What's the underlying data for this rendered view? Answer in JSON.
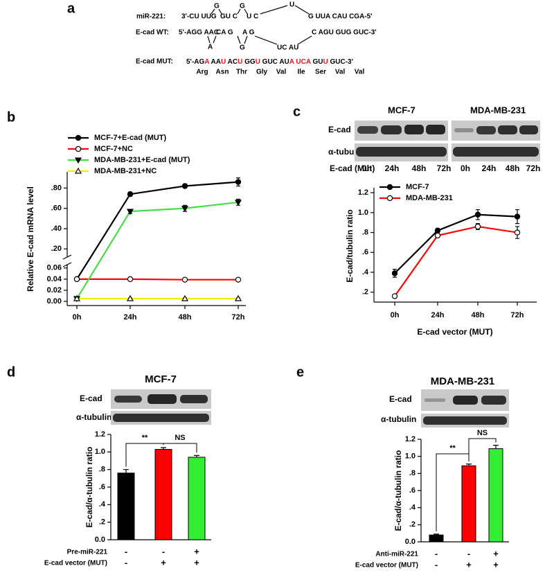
{
  "panel_labels": [
    "a",
    "b",
    "c",
    "d",
    "e"
  ],
  "sequence": {
    "mir221": {
      "label": "miR-221:",
      "paired": [
        "3'-CU UUG",
        "GU C",
        "U C",
        "G UUA CAU CGA-5'"
      ],
      "bulge": [
        "G",
        "G",
        "U"
      ]
    },
    "wt": {
      "label": "E-cad WT:",
      "paired": [
        "5'-AGG AAC",
        "CA G",
        "A G",
        "C AGU GUG GUC-3'"
      ],
      "bulge": [
        "A",
        "G",
        "UC AU"
      ]
    },
    "mut": {
      "label": "E-cad MUT:",
      "segments": [
        {
          "text": "5'-AG"
        },
        {
          "text": "A",
          "color": "#e8141b"
        },
        {
          "text": " AA"
        },
        {
          "text": "U",
          "color": "#e8141b"
        },
        {
          "text": " AC"
        },
        {
          "text": "U",
          "color": "#e8141b"
        },
        {
          "text": " GG"
        },
        {
          "text": "U",
          "color": "#e8141b"
        },
        {
          "text": " GUC AU"
        },
        {
          "text": "A",
          "color": "#e8141b"
        },
        {
          "text": " "
        },
        {
          "text": "UCA",
          "color": "#e8141b"
        },
        {
          "text": " GU"
        },
        {
          "text": "U",
          "color": "#e8141b"
        },
        {
          "text": " GUC-3'"
        }
      ],
      "amino_acids": [
        "Arg",
        "Asn",
        "Thr",
        "Gly",
        "Val",
        "Ile",
        "Ser",
        "Val",
        "Val"
      ]
    }
  },
  "blots": {
    "c": {
      "cell_lines": [
        "MCF-7",
        "MDA-MB-231"
      ],
      "rows": [
        "E-cad",
        "α-tubulin"
      ],
      "lane_label": "E-cad (Mut)",
      "lanes": [
        "0h",
        "24h",
        "48h",
        "72h",
        "0h",
        "24h",
        "48h",
        "72h"
      ]
    },
    "d": {
      "rows": [
        "E-cad",
        "α-tubulin"
      ]
    },
    "e": {
      "rows": [
        "E-cad",
        "α-tubulin"
      ]
    }
  },
  "chart_data": [
    {
      "type": "line",
      "ylabel": "Relative E-cad mRNA level",
      "categories": [
        "0h",
        "24h",
        "48h",
        "72h"
      ],
      "series": [
        {
          "name": "MCF-7+E-cad (MUT)",
          "color": "#000000",
          "marker": "circle",
          "filled": true,
          "values": [
            0.04,
            0.74,
            0.82,
            0.86
          ],
          "errors": [
            0.002,
            0.02,
            0.02,
            0.04
          ]
        },
        {
          "name": "MCF-7+NC",
          "color": "#ff0000",
          "marker": "circle",
          "filled": false,
          "values": [
            0.04,
            0.04,
            0.039,
            0.039
          ],
          "errors": [
            0.001,
            0.001,
            0.001,
            0.001
          ]
        },
        {
          "name": "MDA-MB-231+E-cad (MUT)",
          "color": "#44dd44",
          "marker": "triangle-down",
          "filled": true,
          "values": [
            0.005,
            0.57,
            0.6,
            0.66
          ],
          "errors": [
            0.001,
            0.02,
            0.03,
            0.03
          ]
        },
        {
          "name": "MDA-MB-231+NC",
          "color": "#eeee00",
          "marker": "triangle-up",
          "filled": false,
          "values": [
            0.005,
            0.005,
            0.005,
            0.005
          ],
          "errors": [
            0.001,
            0.001,
            0.001,
            0.001
          ]
        }
      ],
      "ylim": [
        -0.0075,
        0.96
      ],
      "ybreak": [
        0.066,
        0.12
      ],
      "yticks": [
        {
          "value": 0,
          "label": "0.00"
        },
        {
          "value": 0.02,
          "label": "0.02"
        },
        {
          "value": 0.04,
          "label": "0.04"
        },
        {
          "value": 0.06,
          "label": "0.06"
        },
        {
          "value": 0.2,
          "label": ".20"
        },
        {
          "value": 0.4,
          "label": ".40"
        },
        {
          "value": 0.6,
          "label": ".60"
        },
        {
          "value": 0.8,
          "label": ".80"
        }
      ],
      "legend": "upper left"
    },
    {
      "type": "line",
      "ylabel": "E-cad/tubulin ratio",
      "xlabel": "E-cad vector (MUT)",
      "categories": [
        "0h",
        "24h",
        "48h",
        "72h"
      ],
      "series": [
        {
          "name": "MCF-7",
          "color": "#000000",
          "marker": "circle",
          "filled": true,
          "values": [
            0.39,
            0.82,
            0.98,
            0.96
          ],
          "errors": [
            0.04,
            0.02,
            0.05,
            0.07
          ]
        },
        {
          "name": "MDA-MB-231",
          "color": "#ff0000",
          "marker": "circle",
          "filled": false,
          "values": [
            0.16,
            0.77,
            0.86,
            0.8
          ],
          "errors": [
            0.01,
            0.02,
            0.03,
            0.06
          ]
        }
      ],
      "ylim": [
        0.1,
        1.25
      ],
      "yticks": [
        {
          "value": 0.2,
          "label": ".2"
        },
        {
          "value": 0.4,
          "label": ".4"
        },
        {
          "value": 0.6,
          "label": ".6"
        },
        {
          "value": 0.8,
          "label": ".8"
        },
        {
          "value": 1.0,
          "label": "1.0"
        },
        1.2
      ],
      "legend": "upper left"
    },
    {
      "type": "bar",
      "title": "MCF-7",
      "ylabel": "E-cad/α-tubulin ratio",
      "values": [
        0.76,
        1.03,
        0.94
      ],
      "errors": [
        0.04,
        0.02,
        0.02
      ],
      "colors": [
        "#000000",
        "#ff0000",
        "#33ee33"
      ],
      "ylim": [
        0,
        1.2
      ],
      "yticks": [
        {
          "value": 0,
          "label": "0.0"
        },
        {
          "value": 0.2,
          "label": ".2"
        },
        {
          "value": 0.4,
          "label": ".4"
        },
        {
          "value": 0.6,
          "label": ".6"
        },
        {
          "value": 0.8,
          "label": ".8"
        },
        {
          "value": 1.0,
          "label": "1.0"
        },
        1.2
      ],
      "annotations": [
        "**",
        "NS"
      ],
      "treatments": [
        {
          "label": "Pre-miR-221",
          "values": [
            "-",
            "-",
            "+"
          ]
        },
        {
          "label": "E-cad vector (MUT)",
          "values": [
            "-",
            "+",
            "+"
          ]
        }
      ]
    },
    {
      "type": "bar",
      "title": "MDA-MB-231",
      "ylabel": "E-cad/α-tubulin ratio",
      "values": [
        0.08,
        0.89,
        1.09
      ],
      "errors": [
        0.01,
        0.02,
        0.04
      ],
      "colors": [
        "#000000",
        "#ff0000",
        "#33ee33"
      ],
      "ylim": [
        0,
        1.2
      ],
      "yticks": [
        {
          "value": 0,
          "label": "0.0"
        },
        {
          "value": 0.2,
          "label": ".2"
        },
        {
          "value": 0.4,
          "label": ".4"
        },
        {
          "value": 0.6,
          "label": ".6"
        },
        {
          "value": 0.8,
          "label": ".8"
        },
        {
          "value": 1.0,
          "label": "1.0"
        },
        1.2
      ],
      "annotations": [
        "**",
        "NS"
      ],
      "treatments": [
        {
          "label": "Anti-miR-221",
          "values": [
            "-",
            "-",
            "+"
          ]
        },
        {
          "label": "E-cad vector (MUT)",
          "values": [
            "-",
            "+",
            "+"
          ]
        }
      ]
    }
  ]
}
